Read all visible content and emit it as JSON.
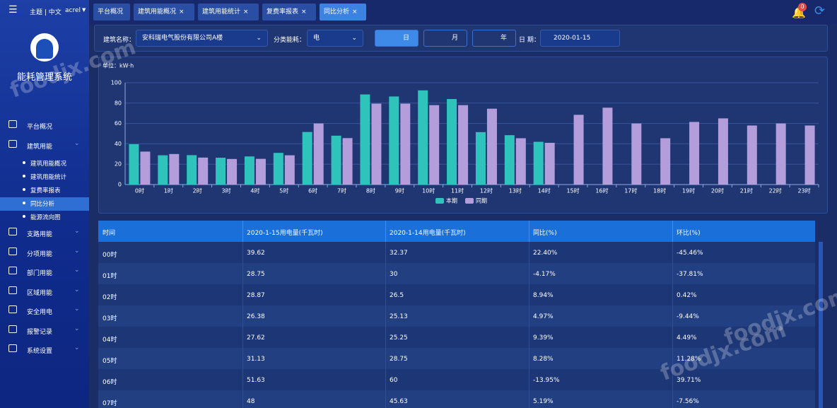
{
  "sidebar": {
    "top_links": "主题 | 中文",
    "user": "acrel",
    "app_title": "能耗管理系统",
    "menu": [
      {
        "label": "平台概况"
      },
      {
        "label": "建筑用能",
        "children": [
          "建筑用能概况",
          "建筑用能统计",
          "复费率报表",
          "同比分析",
          "能源流向图"
        ]
      },
      {
        "label": "支路用能"
      },
      {
        "label": "分项用能"
      },
      {
        "label": "部门用能"
      },
      {
        "label": "区域用能"
      },
      {
        "label": "安全用电"
      },
      {
        "label": "报警记录"
      },
      {
        "label": "系统设置"
      }
    ]
  },
  "tabs": [
    "平台概况",
    "建筑用能概况",
    "建筑用能统计",
    "复费率报表",
    "同比分析"
  ],
  "badge": "0",
  "filters": {
    "building_label": "建筑名称：",
    "building": "安科瑞电气股份有限公司A楼",
    "category_label": "分类能耗：",
    "category": "电",
    "periods": [
      "日",
      "月",
      "年"
    ],
    "date_label": "日 期：",
    "date": "2020-01-15"
  },
  "chart_data": {
    "type": "bar",
    "unit": "单位：kW·h",
    "categories": [
      "0时",
      "1时",
      "2时",
      "3时",
      "4时",
      "5时",
      "6时",
      "7时",
      "8时",
      "9时",
      "10时",
      "11时",
      "12时",
      "13时",
      "14时",
      "15时",
      "16时",
      "17时",
      "18时",
      "19时",
      "20时",
      "21时",
      "22时",
      "23时"
    ],
    "series": [
      {
        "name": "本期",
        "color": "#2ec4bc",
        "values": [
          39.62,
          28.75,
          28.87,
          26.38,
          27.62,
          31.13,
          51.63,
          48,
          88.5,
          86.5,
          92.5,
          84,
          51.5,
          48.5,
          42,
          null,
          null,
          null,
          null,
          null,
          null,
          null,
          null,
          null
        ]
      },
      {
        "name": "同期",
        "color": "#b39ddb",
        "values": [
          32.37,
          30,
          26.5,
          25.13,
          25.25,
          28.75,
          60,
          45.63,
          79.5,
          79.5,
          78,
          78,
          74.5,
          45.5,
          41,
          68.5,
          75.5,
          60,
          45.5,
          61.5,
          65,
          58,
          60,
          58
        ]
      }
    ],
    "ylim": [
      0,
      100
    ],
    "yticks": [
      0,
      20,
      40,
      60,
      80,
      100
    ],
    "grid": true
  },
  "table": {
    "columns": [
      "时间",
      "2020-1-15用电量(千瓦时)",
      "2020-1-14用电量(千瓦时)",
      "同比(%)",
      "环比(%)"
    ],
    "rows": [
      [
        "00时",
        "39.62",
        "32.37",
        "22.40%",
        "-45.46%"
      ],
      [
        "01时",
        "28.75",
        "30",
        "-4.17%",
        "-37.81%"
      ],
      [
        "02时",
        "28.87",
        "26.5",
        "8.94%",
        "0.42%"
      ],
      [
        "03时",
        "26.38",
        "25.13",
        "4.97%",
        "-9.44%"
      ],
      [
        "04时",
        "27.62",
        "25.25",
        "9.39%",
        "4.49%"
      ],
      [
        "05时",
        "31.13",
        "28.75",
        "8.28%",
        "11.28%"
      ],
      [
        "06时",
        "51.63",
        "60",
        "-13.95%",
        "39.71%"
      ],
      [
        "07时",
        "48",
        "45.63",
        "5.19%",
        "-7.56%"
      ]
    ]
  },
  "watermark": "foodjx.com"
}
